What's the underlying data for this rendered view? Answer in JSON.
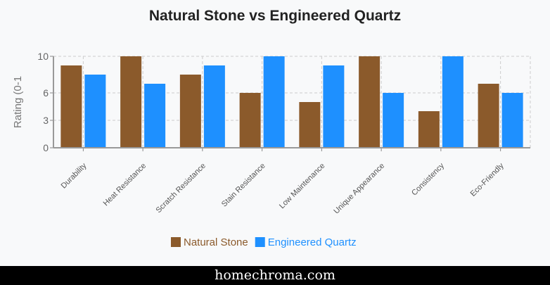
{
  "chart_data": {
    "type": "bar",
    "title": "Natural Stone vs Engineered Quartz",
    "xlabel": "",
    "ylabel": "Rating (0-1",
    "ylim": [
      0,
      10
    ],
    "yticks": [
      0,
      3,
      6,
      10
    ],
    "grid": true,
    "legend_position": "bottom",
    "categories": [
      "Durability",
      "Heat Resistance",
      "Scratch Resistance",
      "Stain Resistance",
      "Low Maintenance",
      "Unique Appearance",
      "Consistency",
      "Eco-Friendly"
    ],
    "series": [
      {
        "name": "Natural Stone",
        "color": "#8b5a2b",
        "values": [
          9,
          10,
          8,
          6,
          5,
          10,
          4,
          7
        ]
      },
      {
        "name": "Engineered Quartz",
        "color": "#1e90ff",
        "values": [
          8,
          7,
          9,
          10,
          9,
          6,
          10,
          6
        ]
      }
    ]
  },
  "footer": {
    "site": "homechroma.com"
  }
}
